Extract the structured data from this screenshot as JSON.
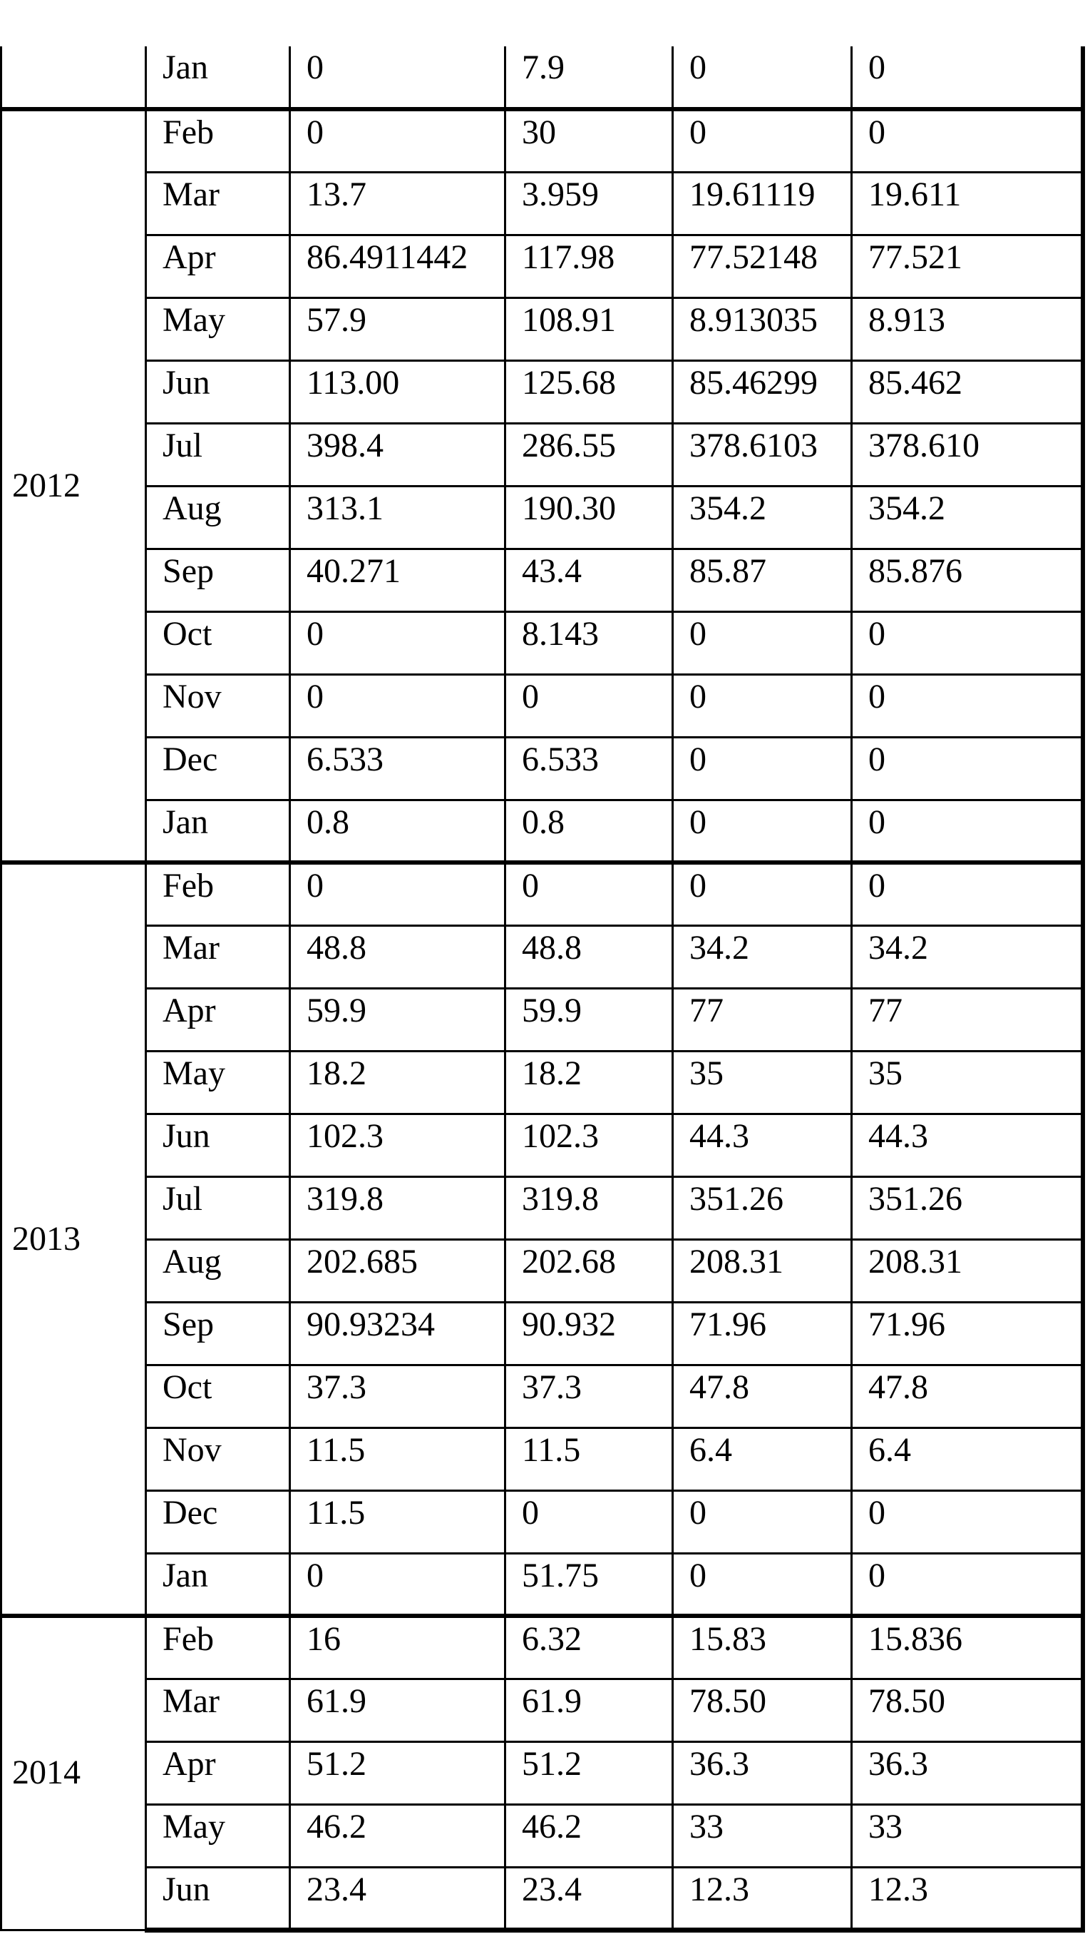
{
  "table": {
    "groups": [
      {
        "year": "",
        "rows": [
          {
            "month": "Jan",
            "values": [
              "0",
              "7.9",
              "0",
              "0"
            ]
          }
        ]
      },
      {
        "year": "2012",
        "rows": [
          {
            "month": "Feb",
            "values": [
              "0",
              "30",
              "0",
              "0"
            ]
          },
          {
            "month": "Mar",
            "values": [
              "13.7",
              "3.959",
              "19.61119",
              "19.611"
            ]
          },
          {
            "month": "Apr",
            "values": [
              "86.4911442",
              "117.98",
              "77.52148",
              "77.521"
            ]
          },
          {
            "month": "May",
            "values": [
              "57.9",
              "108.91",
              "8.913035",
              "8.913"
            ]
          },
          {
            "month": "Jun",
            "values": [
              "113.00",
              "125.68",
              "85.46299",
              "85.462"
            ]
          },
          {
            "month": "Jul",
            "values": [
              "398.4",
              "286.55",
              "378.6103",
              "378.610"
            ]
          },
          {
            "month": "Aug",
            "values": [
              "313.1",
              "190.30",
              "354.2",
              "354.2"
            ]
          },
          {
            "month": "Sep",
            "values": [
              "40.271",
              "43.4",
              "85.87",
              "85.876"
            ]
          },
          {
            "month": "Oct",
            "values": [
              "0",
              "8.143",
              "0",
              "0"
            ]
          },
          {
            "month": "Nov",
            "values": [
              "0",
              "0",
              "0",
              "0"
            ]
          },
          {
            "month": "Dec",
            "values": [
              "6.533",
              "6.533",
              "0",
              "0"
            ]
          },
          {
            "month": "Jan",
            "values": [
              "0.8",
              "0.8",
              "0",
              "0"
            ]
          }
        ]
      },
      {
        "year": "2013",
        "rows": [
          {
            "month": "Feb",
            "values": [
              "0",
              "0",
              "0",
              "0"
            ]
          },
          {
            "month": "Mar",
            "values": [
              "48.8",
              "48.8",
              "34.2",
              "34.2"
            ]
          },
          {
            "month": "Apr",
            "values": [
              "59.9",
              "59.9",
              "77",
              "77"
            ]
          },
          {
            "month": "May",
            "values": [
              "18.2",
              "18.2",
              "35",
              "35"
            ]
          },
          {
            "month": "Jun",
            "values": [
              "102.3",
              "102.3",
              "44.3",
              "44.3"
            ]
          },
          {
            "month": "Jul",
            "values": [
              "319.8",
              "319.8",
              "351.26",
              "351.26"
            ]
          },
          {
            "month": "Aug",
            "values": [
              "202.685",
              "202.68",
              "208.31",
              "208.31"
            ]
          },
          {
            "month": "Sep",
            "values": [
              "90.93234",
              "90.932",
              "71.96",
              "71.96"
            ]
          },
          {
            "month": "Oct",
            "values": [
              "37.3",
              "37.3",
              "47.8",
              "47.8"
            ]
          },
          {
            "month": "Nov",
            "values": [
              "11.5",
              "11.5",
              "6.4",
              "6.4"
            ]
          },
          {
            "month": "Dec",
            "values": [
              "11.5",
              "0",
              "0",
              "0"
            ]
          },
          {
            "month": "Jan",
            "values": [
              "0",
              "51.75",
              "0",
              "0"
            ]
          }
        ]
      },
      {
        "year": "2014",
        "rows": [
          {
            "month": "Feb",
            "values": [
              "16",
              "6.32",
              "15.83",
              "15.836"
            ]
          },
          {
            "month": "Mar",
            "values": [
              "61.9",
              "61.9",
              "78.50",
              "78.50"
            ]
          },
          {
            "month": "Apr",
            "values": [
              "51.2",
              "51.2",
              "36.3",
              "36.3"
            ]
          },
          {
            "month": "May",
            "values": [
              "46.2",
              "46.2",
              "33",
              "33"
            ]
          },
          {
            "month": "Jun",
            "values": [
              "23.4",
              "23.4",
              "12.3",
              "12.3"
            ]
          }
        ]
      }
    ]
  }
}
